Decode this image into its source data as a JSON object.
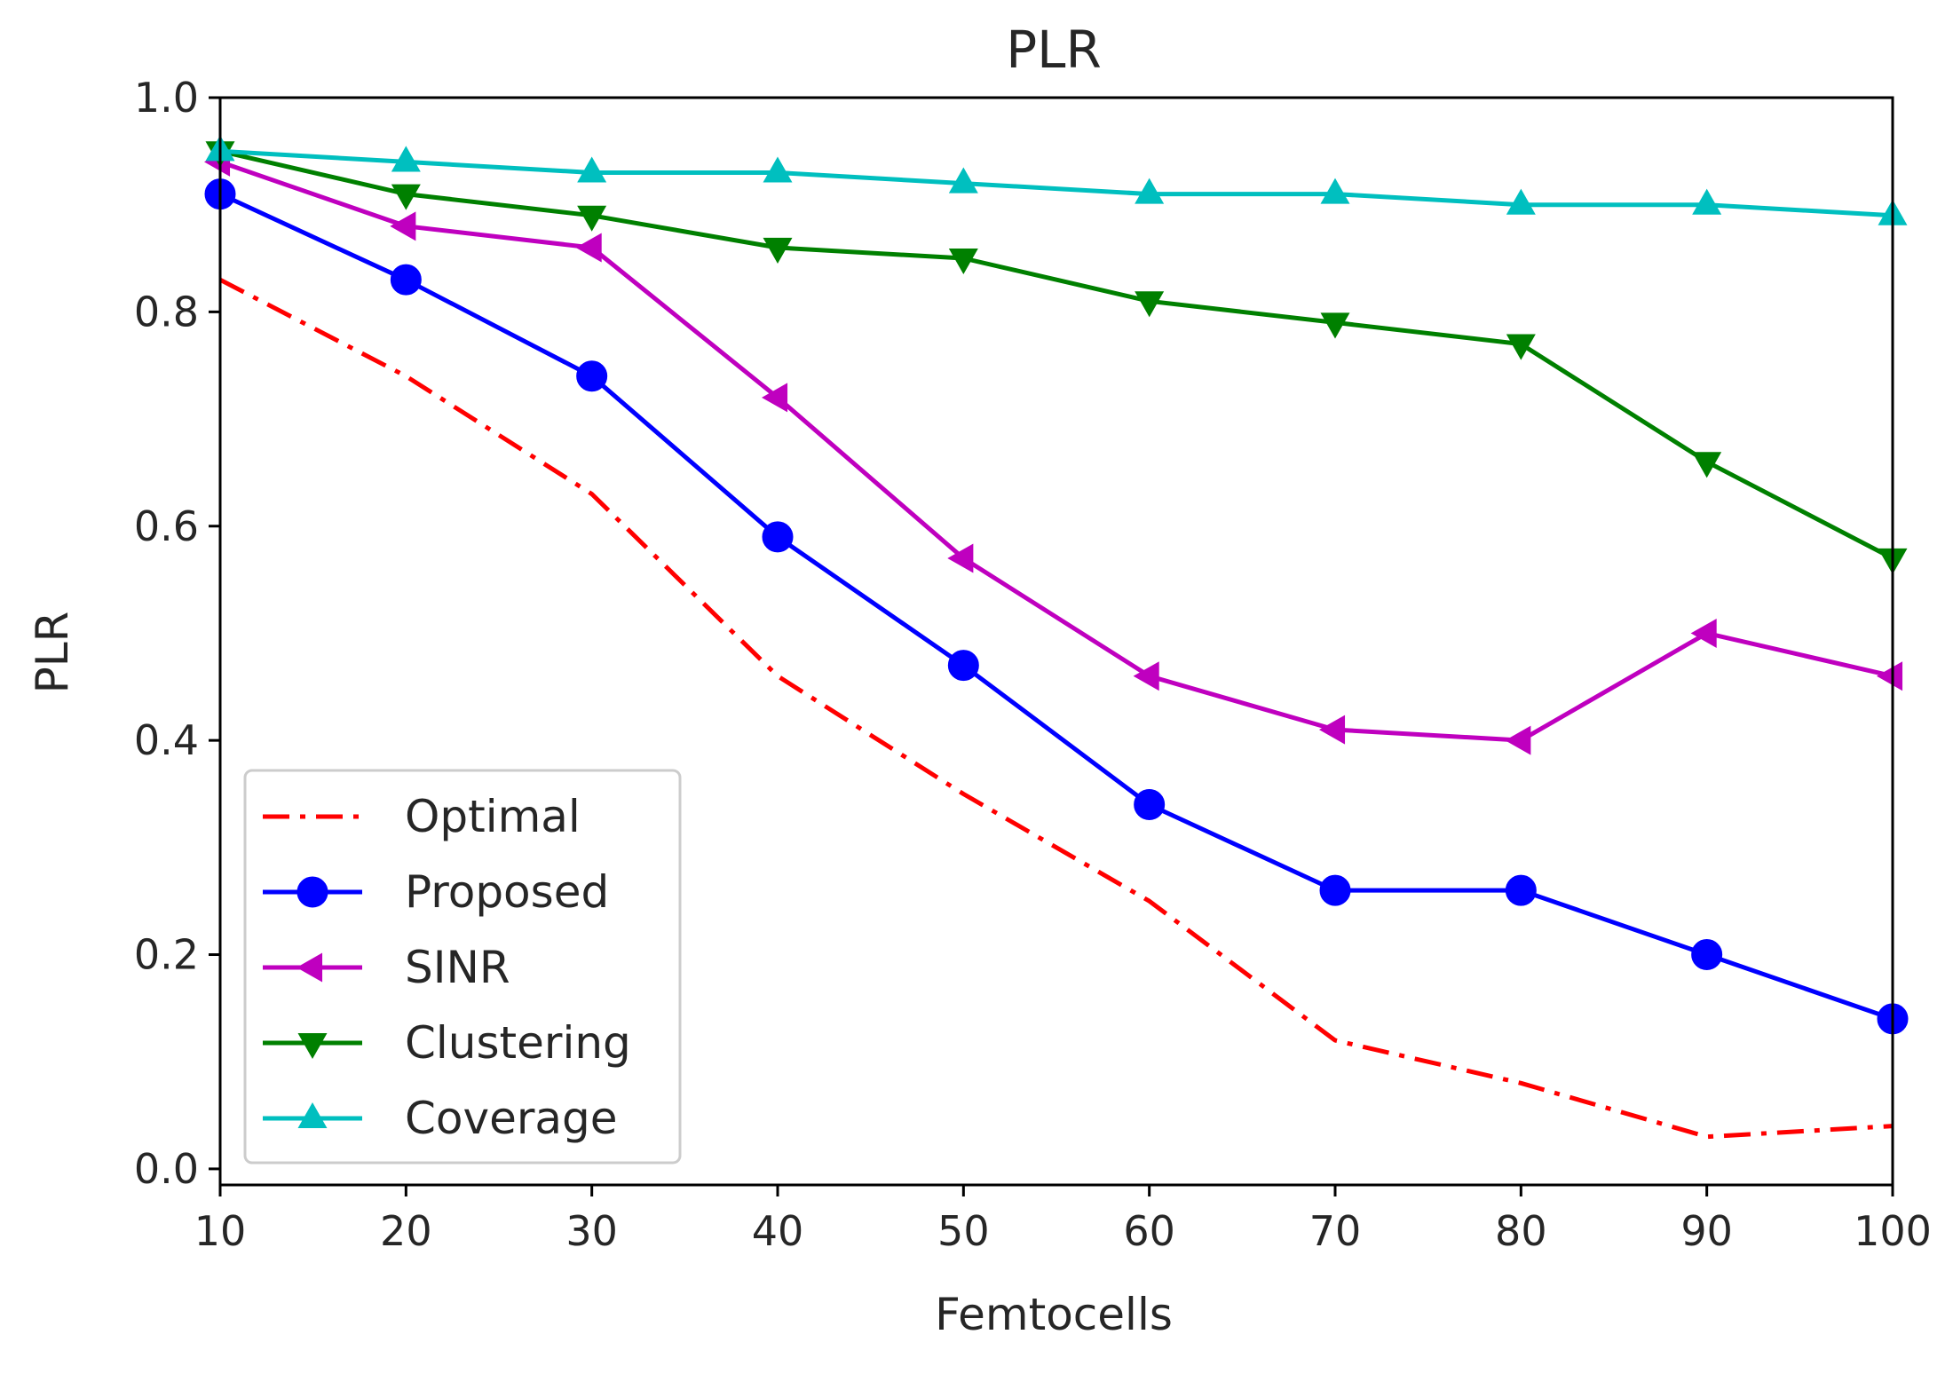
{
  "chart_data": {
    "type": "line",
    "title": "PLR",
    "xlabel": "Femtocells",
    "ylabel": "PLR",
    "x": [
      10,
      20,
      30,
      40,
      50,
      60,
      70,
      80,
      90,
      100
    ],
    "xlim": [
      10,
      100
    ],
    "ylim": [
      -0.015,
      1.0
    ],
    "xticks": [
      "10",
      "20",
      "30",
      "40",
      "50",
      "60",
      "70",
      "80",
      "90",
      "100"
    ],
    "xtick_values": [
      10,
      20,
      30,
      40,
      50,
      60,
      70,
      80,
      90,
      100
    ],
    "yticks": [
      "0.0",
      "0.2",
      "0.4",
      "0.6",
      "0.8",
      "1.0"
    ],
    "ytick_values": [
      0.0,
      0.2,
      0.4,
      0.6,
      0.8,
      1.0
    ],
    "grid": false,
    "legend_position": "lower-left",
    "series": [
      {
        "name": "Optimal",
        "color": "#ff0000",
        "line_style": "dashdot",
        "marker": "none",
        "values": [
          0.83,
          0.74,
          0.63,
          0.46,
          0.35,
          0.25,
          0.12,
          0.08,
          0.03,
          0.04
        ]
      },
      {
        "name": "Proposed",
        "color": "#0000ff",
        "line_style": "solid",
        "marker": "circle",
        "values": [
          0.91,
          0.83,
          0.74,
          0.59,
          0.47,
          0.34,
          0.26,
          0.26,
          0.2,
          0.14
        ]
      },
      {
        "name": "SINR",
        "color": "#bf00bf",
        "line_style": "solid",
        "marker": "triangle-left",
        "values": [
          0.94,
          0.88,
          0.86,
          0.72,
          0.57,
          0.46,
          0.41,
          0.4,
          0.5,
          0.46
        ]
      },
      {
        "name": "Clustering",
        "color": "#008000",
        "line_style": "solid",
        "marker": "triangle-down",
        "values": [
          0.95,
          0.91,
          0.89,
          0.86,
          0.85,
          0.81,
          0.79,
          0.77,
          0.66,
          0.57
        ]
      },
      {
        "name": "Coverage",
        "color": "#00bfbf",
        "line_style": "solid",
        "marker": "triangle-up",
        "values": [
          0.95,
          0.94,
          0.93,
          0.93,
          0.92,
          0.91,
          0.91,
          0.9,
          0.9,
          0.89
        ]
      }
    ]
  }
}
